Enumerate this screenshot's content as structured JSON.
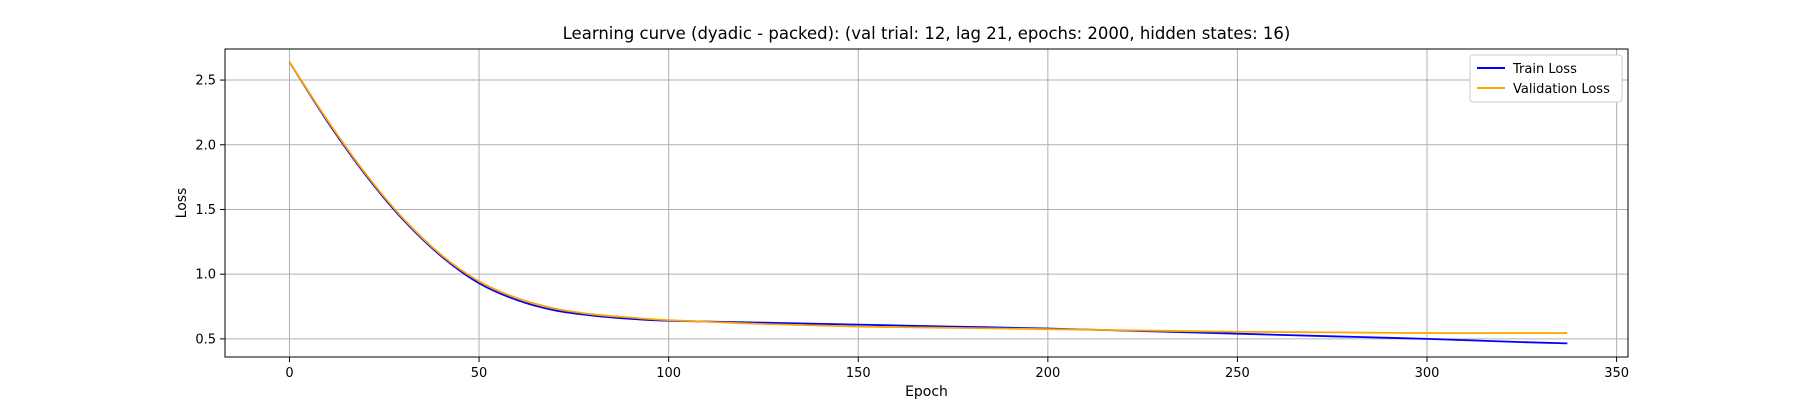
{
  "chart_data": {
    "type": "line",
    "title": "Learning curve (dyadic - packed): (val trial: 12, lag 21, epochs: 2000, hidden states: 16)",
    "xlabel": "Epoch",
    "ylabel": "Loss",
    "xlim": [
      -17,
      353
    ],
    "ylim": [
      0.36,
      2.74
    ],
    "xticks": [
      0,
      50,
      100,
      150,
      200,
      250,
      300,
      350
    ],
    "yticks": [
      0.5,
      1.0,
      1.5,
      2.0,
      2.5
    ],
    "xtick_labels": [
      "0",
      "50",
      "100",
      "150",
      "200",
      "250",
      "300",
      "350"
    ],
    "ytick_labels": [
      "0.5",
      "1.0",
      "1.5",
      "2.0",
      "2.5"
    ],
    "grid": true,
    "legend_position": "top-right",
    "series": [
      {
        "name": "Train Loss",
        "color": "#0000ff",
        "x": [
          0,
          10,
          20,
          30,
          40,
          50,
          60,
          70,
          80,
          90,
          100,
          125,
          150,
          175,
          200,
          225,
          250,
          275,
          300,
          325,
          337
        ],
        "y": [
          2.64,
          2.18,
          1.77,
          1.42,
          1.14,
          0.93,
          0.8,
          0.72,
          0.68,
          0.655,
          0.64,
          0.625,
          0.61,
          0.595,
          0.58,
          0.56,
          0.54,
          0.52,
          0.5,
          0.475,
          0.465
        ]
      },
      {
        "name": "Validation Loss",
        "color": "#ffa500",
        "x": [
          0,
          10,
          20,
          30,
          40,
          50,
          60,
          70,
          80,
          90,
          100,
          125,
          150,
          175,
          200,
          225,
          250,
          275,
          300,
          325,
          337
        ],
        "y": [
          2.64,
          2.19,
          1.78,
          1.43,
          1.15,
          0.945,
          0.815,
          0.735,
          0.69,
          0.665,
          0.645,
          0.615,
          0.595,
          0.585,
          0.575,
          0.565,
          0.555,
          0.55,
          0.545,
          0.545,
          0.545
        ]
      }
    ]
  }
}
